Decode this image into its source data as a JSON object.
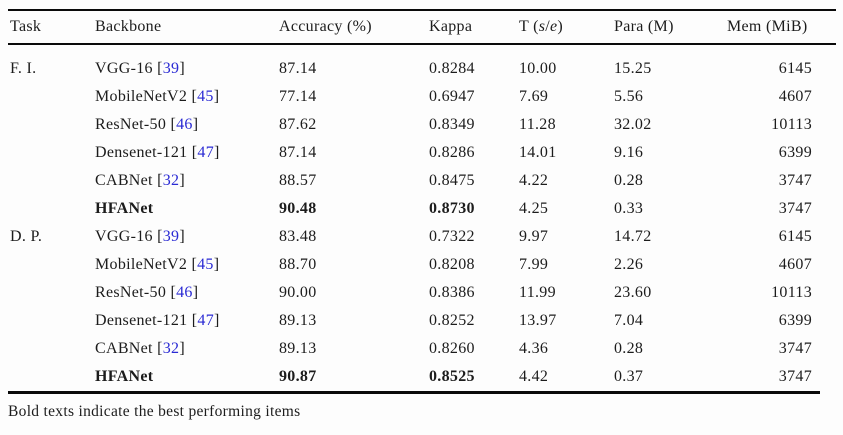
{
  "colors": {
    "text": "#1c1c1c",
    "citation_blue": "#2a2ad4",
    "rule": "#0a0a0a",
    "background": "#fdfdfd"
  },
  "table": {
    "columns": [
      {
        "key": "task",
        "label": "Task"
      },
      {
        "key": "backbone",
        "label": "Backbone"
      },
      {
        "key": "accuracy",
        "label": "Accuracy (%)"
      },
      {
        "key": "kappa",
        "label": "Kappa"
      },
      {
        "key": "t",
        "label": "T (s/e)",
        "parts": [
          {
            "t": "T ("
          },
          {
            "t": "s",
            "i": true
          },
          {
            "t": "/"
          },
          {
            "t": "e",
            "i": true
          },
          {
            "t": ")"
          }
        ]
      },
      {
        "key": "para",
        "label": "Para (M)"
      },
      {
        "key": "mem",
        "label": "Mem (MiB)"
      }
    ],
    "rows": [
      {
        "task": "F. I.",
        "backbone": "VGG-16",
        "cite": "39",
        "accuracy": "87.14",
        "kappa": "0.8284",
        "t": "10.00",
        "para": "15.25",
        "mem": "6145",
        "bold_cells": []
      },
      {
        "task": "",
        "backbone": "MobileNetV2",
        "cite": "45",
        "accuracy": "77.14",
        "kappa": "0.6947",
        "t": "7.69",
        "para": "5.56",
        "mem": "4607",
        "bold_cells": []
      },
      {
        "task": "",
        "backbone": "ResNet-50",
        "cite": "46",
        "accuracy": "87.62",
        "kappa": "0.8349",
        "t": "11.28",
        "para": "32.02",
        "mem": "10113",
        "bold_cells": []
      },
      {
        "task": "",
        "backbone": "Densenet-121",
        "cite": "47",
        "accuracy": "87.14",
        "kappa": "0.8286",
        "t": "14.01",
        "para": "9.16",
        "mem": "6399",
        "bold_cells": []
      },
      {
        "task": "",
        "backbone": "CABNet",
        "cite": "32",
        "accuracy": "88.57",
        "kappa": "0.8475",
        "t": "4.22",
        "para": "0.28",
        "mem": "3747",
        "bold_cells": []
      },
      {
        "task": "",
        "backbone": "HFANet",
        "cite": null,
        "accuracy": "90.48",
        "kappa": "0.8730",
        "t": "4.25",
        "para": "0.33",
        "mem": "3747",
        "bold_cells": [
          "backbone",
          "accuracy",
          "kappa"
        ]
      },
      {
        "task": "D. P.",
        "backbone": "VGG-16",
        "cite": "39",
        "accuracy": "83.48",
        "kappa": "0.7322",
        "t": "9.97",
        "para": "14.72",
        "mem": "6145",
        "bold_cells": []
      },
      {
        "task": "",
        "backbone": "MobileNetV2",
        "cite": "45",
        "accuracy": "88.70",
        "kappa": "0.8208",
        "t": "7.99",
        "para": "2.26",
        "mem": "4607",
        "bold_cells": []
      },
      {
        "task": "",
        "backbone": "ResNet-50",
        "cite": "46",
        "accuracy": "90.00",
        "kappa": "0.8386",
        "t": "11.99",
        "para": "23.60",
        "mem": "10113",
        "bold_cells": []
      },
      {
        "task": "",
        "backbone": "Densenet-121",
        "cite": "47",
        "accuracy": "89.13",
        "kappa": "0.8252",
        "t": "13.97",
        "para": "7.04",
        "mem": "6399",
        "bold_cells": []
      },
      {
        "task": "",
        "backbone": "CABNet",
        "cite": "32",
        "accuracy": "89.13",
        "kappa": "0.8260",
        "t": "4.36",
        "para": "0.28",
        "mem": "3747",
        "bold_cells": []
      },
      {
        "task": "",
        "backbone": "HFANet",
        "cite": null,
        "accuracy": "90.87",
        "kappa": "0.8525",
        "t": "4.42",
        "para": "0.37",
        "mem": "3747",
        "bold_cells": [
          "backbone",
          "accuracy",
          "kappa"
        ]
      }
    ],
    "footnote": "Bold texts indicate the best performing items"
  }
}
